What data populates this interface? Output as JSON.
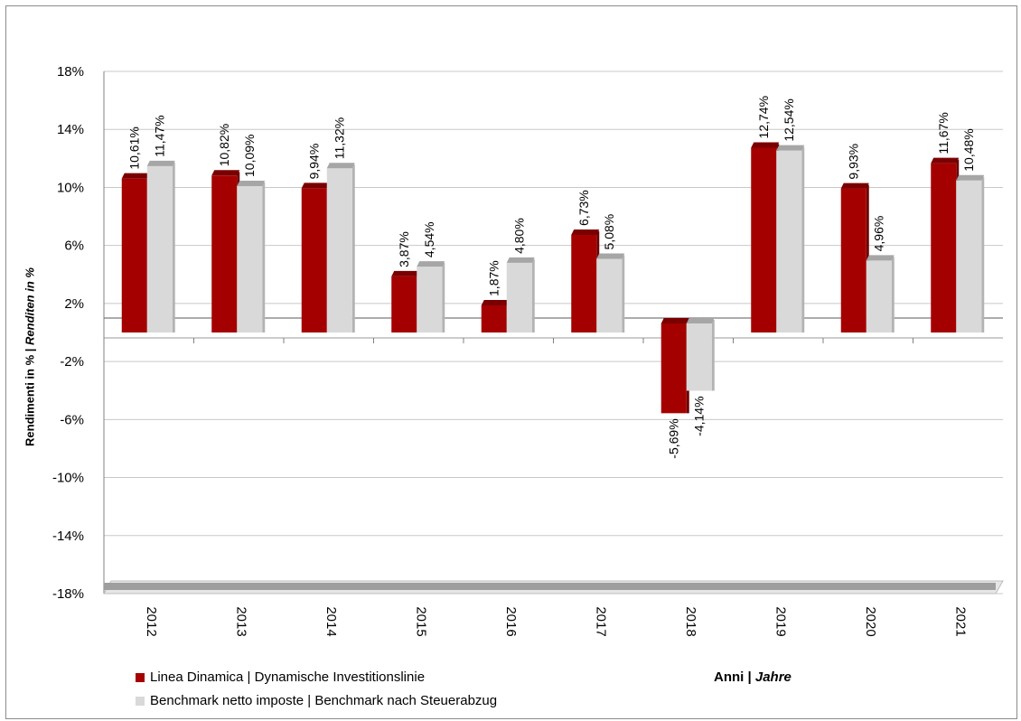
{
  "chart_data": {
    "type": "bar",
    "categories": [
      "2012",
      "2013",
      "2014",
      "2015",
      "2016",
      "2017",
      "2018",
      "2019",
      "2020",
      "2021"
    ],
    "series": [
      {
        "name": "Linea Dinamica | Dynamische Investitionslinie",
        "color": "#a50000",
        "values": [
          10.61,
          10.82,
          9.94,
          3.87,
          1.87,
          6.73,
          -5.69,
          12.74,
          9.93,
          11.67
        ],
        "labels": [
          "10,61%",
          "10,82%",
          "9,94%",
          "3,87%",
          "1,87%",
          "6,73%",
          "-5,69%",
          "12,74%",
          "9,93%",
          "11,67%"
        ]
      },
      {
        "name": "Benchmark netto imposte | Benchmark nach Steuerabzug",
        "color": "#d9d9d9",
        "values": [
          11.47,
          10.09,
          11.32,
          4.54,
          4.8,
          5.08,
          -4.14,
          12.54,
          4.96,
          10.48
        ],
        "labels": [
          "11,47%",
          "10,09%",
          "11,32%",
          "4,54%",
          "4,80%",
          "5,08%",
          "-4,14%",
          "12,54%",
          "4,96%",
          "10,48%"
        ]
      }
    ],
    "yticks": [
      18,
      14,
      10,
      6,
      2,
      -2,
      -6,
      -10,
      -14,
      -18
    ],
    "ytick_labels": [
      "18%",
      "14%",
      "10%",
      "6%",
      "2%",
      "-2%",
      "-6%",
      "-10%",
      "-14%",
      "-18%"
    ],
    "ylim": [
      -18,
      18
    ],
    "grid": true,
    "legend_position": "bottom-left",
    "xlabel_a": "Anni | ",
    "xlabel_b": "Jahre",
    "ylabel_a": "Rendimenti in % | ",
    "ylabel_b": "Renditen in %"
  }
}
